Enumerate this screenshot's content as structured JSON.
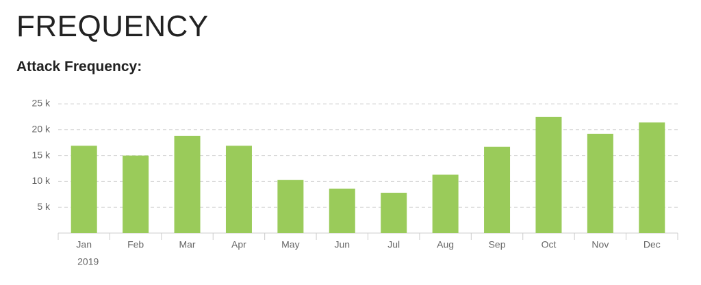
{
  "header": {
    "title": "FREQUENCY"
  },
  "chart_data": {
    "type": "bar",
    "title": "Attack Frequency:",
    "categories": [
      "Jan",
      "Feb",
      "Mar",
      "Apr",
      "May",
      "Jun",
      "Jul",
      "Aug",
      "Sep",
      "Oct",
      "Nov",
      "Dec"
    ],
    "values": [
      16900,
      15000,
      18800,
      16900,
      10300,
      8600,
      7800,
      11300,
      16700,
      22500,
      19200,
      21400
    ],
    "color": "#9acb5a",
    "ylim": [
      0,
      25000
    ],
    "yticks": [
      {
        "value": 5000,
        "label": "5 k"
      },
      {
        "value": 10000,
        "label": "10 k"
      },
      {
        "value": 15000,
        "label": "15 k"
      },
      {
        "value": 20000,
        "label": "20 k"
      },
      {
        "value": 25000,
        "label": "25 k"
      }
    ],
    "grid": true,
    "year_label": "2019"
  }
}
